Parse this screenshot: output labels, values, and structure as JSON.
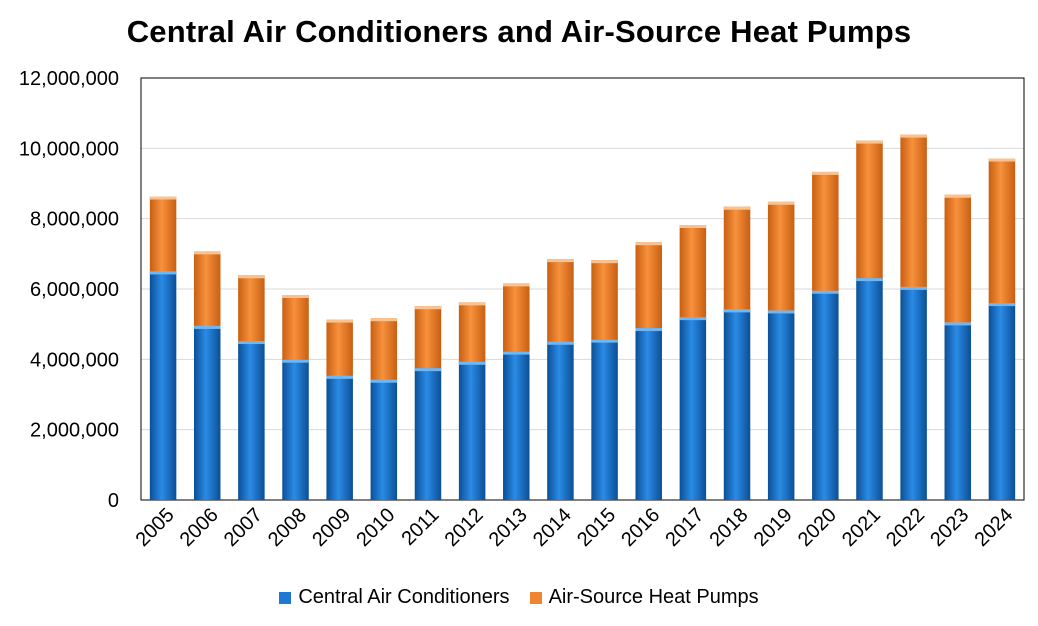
{
  "chart_data": {
    "type": "bar",
    "stacked": true,
    "title": "Central Air Conditioners and Air-Source Heat Pumps",
    "xlabel": "",
    "ylabel": "",
    "ylim": [
      0,
      12000000
    ],
    "yticks": [
      0,
      2000000,
      4000000,
      6000000,
      8000000,
      10000000,
      12000000
    ],
    "ytick_labels": [
      "0",
      "2,000,000",
      "4,000,000",
      "6,000,000",
      "8,000,000",
      "10,000,000",
      "12,000,000"
    ],
    "grid": true,
    "legend_position": "bottom",
    "categories": [
      "2005",
      "2006",
      "2007",
      "2008",
      "2009",
      "2010",
      "2011",
      "2012",
      "2013",
      "2014",
      "2015",
      "2016",
      "2017",
      "2018",
      "2019",
      "2020",
      "2021",
      "2022",
      "2023",
      "2024"
    ],
    "series": [
      {
        "name": "Central Air Conditioners",
        "color": "#1f78d1",
        "values": [
          6500000,
          4950000,
          4520000,
          3990000,
          3530000,
          3420000,
          3750000,
          3930000,
          4220000,
          4500000,
          4560000,
          4890000,
          5200000,
          5420000,
          5390000,
          5950000,
          6310000,
          6060000,
          5050000,
          5600000
        ]
      },
      {
        "name": "Air-Source Heat Pumps",
        "color": "#ef8530",
        "values": [
          2130000,
          2120000,
          1870000,
          1840000,
          1600000,
          1750000,
          1760000,
          1690000,
          1940000,
          2350000,
          2260000,
          2440000,
          2620000,
          2920000,
          3090000,
          3380000,
          3910000,
          4330000,
          3630000,
          4110000
        ]
      }
    ]
  }
}
